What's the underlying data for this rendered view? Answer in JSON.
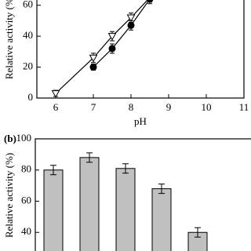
{
  "chart_data": [
    {
      "type": "line",
      "x_label": "pH",
      "y_label": "Relative activity (%)",
      "xlim": [
        5.5,
        11
      ],
      "xticks": [
        6,
        7,
        8,
        9,
        10,
        11
      ],
      "ylim": [
        0,
        70
      ],
      "yticks": [
        0,
        20,
        40,
        60
      ],
      "series": [
        {
          "color": "#ffffff",
          "marker": "triangle-down",
          "x": [
            6,
            7,
            7.5,
            8,
            8.5
          ],
          "values": [
            3,
            26,
            40,
            52,
            65
          ],
          "errors": [
            2,
            3,
            3,
            3,
            3
          ]
        },
        {
          "color": "#000000",
          "marker": "circle",
          "x": [
            7,
            7.5,
            8,
            8.5
          ],
          "values": [
            20,
            32,
            47,
            64
          ],
          "errors": [
            2,
            3,
            3,
            3
          ]
        }
      ]
    },
    {
      "type": "bar",
      "panel_label": "(b)",
      "y_label": "Relative activity (%)",
      "categories": [
        null,
        null,
        null,
        null,
        null
      ],
      "values": [
        80,
        88,
        81,
        68,
        40
      ],
      "errors": [
        3,
        3,
        3,
        3,
        3
      ],
      "color": "#c0c0c0",
      "ylim": [
        20,
        100
      ],
      "yticks": [
        40,
        60,
        80,
        100
      ]
    }
  ]
}
